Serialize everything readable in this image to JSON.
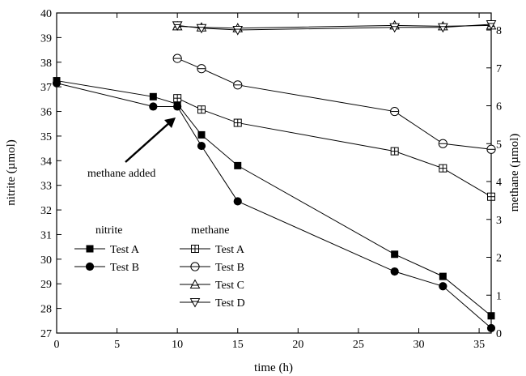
{
  "chart_data": {
    "type": "line",
    "xlabel": "time (h)",
    "ylabel_left": "nitrite (µmol)",
    "ylabel_right": "methane (µmol)",
    "xlim": [
      0,
      36
    ],
    "ylim_left": [
      27,
      40
    ],
    "ylim_right": [
      0,
      8.45
    ],
    "x_ticks": [
      "0",
      "5",
      "10",
      "15",
      "20",
      "25",
      "30",
      "35"
    ],
    "y_left_ticks": [
      "27",
      "28",
      "29",
      "30",
      "31",
      "32",
      "33",
      "34",
      "35",
      "36",
      "37",
      "38",
      "39",
      "40"
    ],
    "y_right_ticks": [
      "0",
      "1",
      "2",
      "3",
      "4",
      "5",
      "6",
      "7",
      "8"
    ],
    "annotation": "methane added",
    "annotation_target": {
      "x": 10,
      "y": 36.2
    },
    "legend_nitrite_title": "nitrite",
    "legend_methane_title": "methane",
    "series": [
      {
        "name": "Test A",
        "group": "nitrite",
        "axis": "left",
        "marker": "square-filled",
        "x": [
          0,
          8,
          10,
          12,
          15,
          28,
          32,
          36
        ],
        "y": [
          37.25,
          36.6,
          36.3,
          35.05,
          33.8,
          30.2,
          29.3,
          27.7
        ]
      },
      {
        "name": "Test B",
        "group": "nitrite",
        "axis": "left",
        "marker": "circle-filled",
        "x": [
          0,
          8,
          10,
          12,
          15,
          28,
          32,
          36
        ],
        "y": [
          37.15,
          36.2,
          36.2,
          34.6,
          32.35,
          29.5,
          28.9,
          27.2
        ]
      },
      {
        "name": "Test A",
        "group": "methane",
        "axis": "right",
        "marker": "square-open",
        "x": [
          10,
          12,
          15,
          28,
          32,
          36
        ],
        "y": [
          6.2,
          5.9,
          5.55,
          4.8,
          4.35,
          3.6
        ]
      },
      {
        "name": "Test B",
        "group": "methane",
        "axis": "right",
        "marker": "circle-open",
        "x": [
          10,
          12,
          15,
          28,
          32,
          36
        ],
        "y": [
          7.25,
          6.98,
          6.55,
          5.85,
          5.0,
          4.85
        ]
      },
      {
        "name": "Test C",
        "group": "methane",
        "axis": "right",
        "marker": "triangle-up-open",
        "x": [
          10,
          12,
          15,
          28,
          32,
          36
        ],
        "y": [
          8.1,
          8.07,
          8.05,
          8.12,
          8.1,
          8.12
        ]
      },
      {
        "name": "Test D",
        "group": "methane",
        "axis": "right",
        "marker": "triangle-down-open",
        "x": [
          10,
          12,
          15,
          28,
          32,
          36
        ],
        "y": [
          8.12,
          8.05,
          8.0,
          8.07,
          8.07,
          8.15
        ]
      }
    ]
  }
}
